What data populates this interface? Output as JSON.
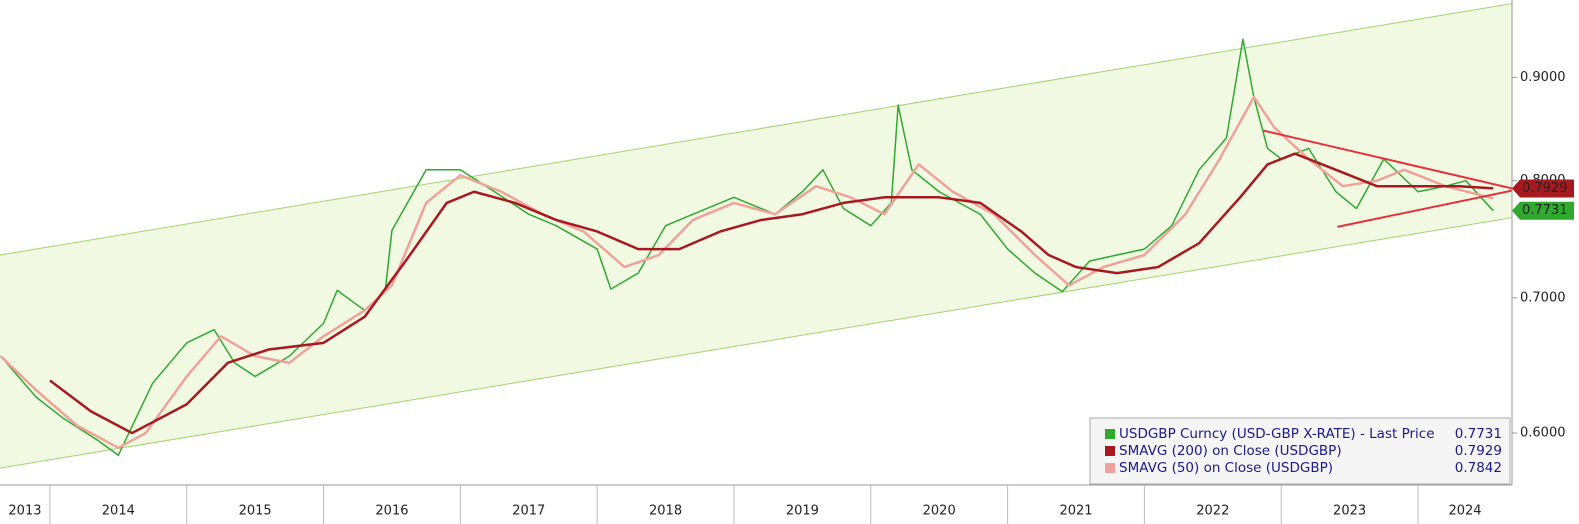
{
  "chart_data": {
    "type": "line",
    "log_scale": true,
    "xlim": [
      2013.635,
      2024.687
    ],
    "xticks": [
      2014,
      2015,
      2016,
      2017,
      2018,
      2019,
      2020,
      2021,
      2022,
      2023,
      2024
    ],
    "categories": [
      "2013",
      "2014",
      "2015",
      "2016",
      "2017",
      "2018",
      "2019",
      "2020",
      "2021",
      "2022",
      "2023",
      "2024"
    ],
    "ylim": [
      0.5655,
      0.983
    ],
    "yticks": [
      {
        "value": 0.6,
        "label": "0.6000"
      },
      {
        "value": 0.7,
        "label": "0.7000"
      },
      {
        "value": 0.8,
        "label": "0.8000"
      },
      {
        "value": 0.9,
        "label": "0.9000"
      }
    ],
    "channel": {
      "color": "#f1f9e3",
      "edge": "#9fd66a",
      "x": [
        2013.635,
        2024.687
      ],
      "upper": [
        0.735,
        0.979
      ],
      "lower": [
        0.5765,
        0.767
      ]
    },
    "trendlines": [
      {
        "color": "#e5323a",
        "x": [
          2022.87,
          2024.687
        ],
        "values": [
          0.847,
          0.793
        ]
      },
      {
        "color": "#e5323a",
        "x": [
          2023.41,
          2024.687
        ],
        "values": [
          0.759,
          0.791
        ]
      }
    ],
    "series": [
      {
        "name": "USDGBP Curncy (USD-GBP X-RATE) - Last Price",
        "color": "#2faa2f",
        "last": 0.7731,
        "x": [
          2013.64,
          2013.9,
          2014.1,
          2014.35,
          2014.5,
          2014.75,
          2015.0,
          2015.2,
          2015.35,
          2015.5,
          2015.75,
          2016.0,
          2016.1,
          2016.3,
          2016.45,
          2016.5,
          2016.75,
          2017.0,
          2017.25,
          2017.5,
          2017.7,
          2018.0,
          2018.1,
          2018.3,
          2018.5,
          2018.8,
          2019.0,
          2019.3,
          2019.5,
          2019.65,
          2019.8,
          2020.0,
          2020.15,
          2020.2,
          2020.3,
          2020.5,
          2020.8,
          2021.0,
          2021.2,
          2021.4,
          2021.6,
          2021.8,
          2022.0,
          2022.2,
          2022.4,
          2022.6,
          2022.72,
          2022.8,
          2022.9,
          2023.0,
          2023.2,
          2023.4,
          2023.55,
          2023.75,
          2024.0,
          2024.2,
          2024.35,
          2024.55
        ],
        "values": [
          0.655,
          0.625,
          0.61,
          0.595,
          0.585,
          0.635,
          0.665,
          0.675,
          0.65,
          0.64,
          0.655,
          0.68,
          0.706,
          0.69,
          0.705,
          0.756,
          0.81,
          0.81,
          0.79,
          0.77,
          0.76,
          0.74,
          0.707,
          0.72,
          0.76,
          0.775,
          0.785,
          0.77,
          0.79,
          0.81,
          0.775,
          0.76,
          0.78,
          0.872,
          0.81,
          0.79,
          0.77,
          0.74,
          0.72,
          0.705,
          0.73,
          0.735,
          0.74,
          0.76,
          0.81,
          0.84,
          0.94,
          0.88,
          0.83,
          0.82,
          0.83,
          0.79,
          0.775,
          0.82,
          0.79,
          0.795,
          0.8,
          0.773
        ]
      },
      {
        "name": "SMAVG (200)  on Close (USDGBP)",
        "color": "#a8191f",
        "last": 0.7929,
        "x": [
          2014.0,
          2014.3,
          2014.6,
          2015.0,
          2015.3,
          2015.6,
          2016.0,
          2016.3,
          2016.6,
          2016.9,
          2017.1,
          2017.4,
          2017.7,
          2018.0,
          2018.3,
          2018.6,
          2018.9,
          2019.2,
          2019.5,
          2019.8,
          2020.1,
          2020.5,
          2020.8,
          2021.1,
          2021.3,
          2021.5,
          2021.8,
          2022.1,
          2022.4,
          2022.7,
          2022.9,
          2023.1,
          2023.4,
          2023.7,
          2024.0,
          2024.3,
          2024.55
        ],
        "values": [
          0.637,
          0.615,
          0.6,
          0.62,
          0.65,
          0.66,
          0.665,
          0.685,
          0.73,
          0.78,
          0.79,
          0.78,
          0.765,
          0.755,
          0.74,
          0.74,
          0.755,
          0.765,
          0.77,
          0.78,
          0.785,
          0.785,
          0.78,
          0.755,
          0.735,
          0.725,
          0.72,
          0.725,
          0.745,
          0.785,
          0.815,
          0.825,
          0.81,
          0.795,
          0.795,
          0.795,
          0.793
        ]
      },
      {
        "name": "SMAVG (50)  on Close (USDGBP)",
        "color": "#f0a29a",
        "last": 0.7842,
        "x": [
          2013.64,
          2013.9,
          2014.2,
          2014.5,
          2014.7,
          2015.0,
          2015.25,
          2015.5,
          2015.75,
          2016.0,
          2016.3,
          2016.5,
          2016.75,
          2017.0,
          2017.3,
          2017.6,
          2017.9,
          2018.2,
          2018.45,
          2018.7,
          2019.0,
          2019.3,
          2019.6,
          2019.85,
          2020.1,
          2020.35,
          2020.6,
          2020.9,
          2021.2,
          2021.45,
          2021.7,
          2022.0,
          2022.3,
          2022.55,
          2022.8,
          2022.95,
          2023.2,
          2023.45,
          2023.7,
          2023.9,
          2024.2,
          2024.55
        ],
        "values": [
          0.655,
          0.63,
          0.605,
          0.59,
          0.6,
          0.64,
          0.67,
          0.655,
          0.65,
          0.67,
          0.69,
          0.71,
          0.78,
          0.805,
          0.79,
          0.77,
          0.755,
          0.725,
          0.735,
          0.765,
          0.78,
          0.77,
          0.795,
          0.785,
          0.77,
          0.815,
          0.79,
          0.77,
          0.735,
          0.71,
          0.725,
          0.735,
          0.77,
          0.82,
          0.88,
          0.85,
          0.82,
          0.795,
          0.8,
          0.81,
          0.795,
          0.784
        ]
      }
    ]
  }
}
